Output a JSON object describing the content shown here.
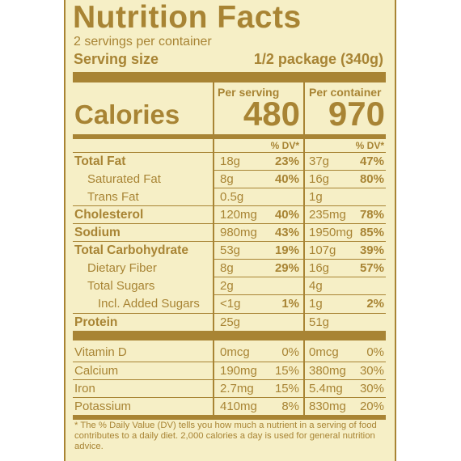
{
  "title": "Nutrition Facts",
  "servings_per_container": "2 servings per container",
  "serving_size": {
    "label": "Serving size",
    "value": "1/2 package (340g)"
  },
  "columns": {
    "per_serving": "Per serving",
    "per_container": "Per container"
  },
  "calories": {
    "label": "Calories",
    "per_serving": "480",
    "per_container": "970"
  },
  "dv_header": "% DV*",
  "nutrients": [
    {
      "name": "Total Fat",
      "ps_amount": "18g",
      "ps_dv": "23%",
      "pc_amount": "37g",
      "pc_dv": "47%"
    },
    {
      "name": "Saturated Fat",
      "ps_amount": "8g",
      "ps_dv": "40%",
      "pc_amount": "16g",
      "pc_dv": "80%"
    },
    {
      "name": "Trans Fat",
      "ps_amount": "0.5g",
      "ps_dv": "",
      "pc_amount": "1g",
      "pc_dv": ""
    },
    {
      "name": "Cholesterol",
      "ps_amount": "120mg",
      "ps_dv": "40%",
      "pc_amount": "235mg",
      "pc_dv": "78%"
    },
    {
      "name": "Sodium",
      "ps_amount": "980mg",
      "ps_dv": "43%",
      "pc_amount": "1950mg",
      "pc_dv": "85%"
    },
    {
      "name": "Total Carbohydrate",
      "ps_amount": "53g",
      "ps_dv": "19%",
      "pc_amount": "107g",
      "pc_dv": "39%"
    },
    {
      "name": "Dietary Fiber",
      "ps_amount": "8g",
      "ps_dv": "29%",
      "pc_amount": "16g",
      "pc_dv": "57%"
    },
    {
      "name": "Total Sugars",
      "ps_amount": "2g",
      "ps_dv": "",
      "pc_amount": "4g",
      "pc_dv": ""
    },
    {
      "name": "Incl. Added Sugars",
      "ps_amount": "<1g",
      "ps_dv": "1%",
      "pc_amount": "1g",
      "pc_dv": "2%"
    },
    {
      "name": "Protein",
      "ps_amount": "25g",
      "ps_dv": "",
      "pc_amount": "51g",
      "pc_dv": ""
    }
  ],
  "vitamins": [
    {
      "name": "Vitamin D",
      "ps_amount": "0mcg",
      "ps_dv": "0%",
      "pc_amount": "0mcg",
      "pc_dv": "0%"
    },
    {
      "name": "Calcium",
      "ps_amount": "190mg",
      "ps_dv": "15%",
      "pc_amount": "380mg",
      "pc_dv": "30%"
    },
    {
      "name": "Iron",
      "ps_amount": "2.7mg",
      "ps_dv": "15%",
      "pc_amount": "5.4mg",
      "pc_dv": "30%"
    },
    {
      "name": "Potassium",
      "ps_amount": "410mg",
      "ps_dv": "8%",
      "pc_amount": "830mg",
      "pc_dv": "20%"
    }
  ],
  "footnote": "* The % Daily Value (DV) tells you how much a nutrient in a serving of food contributes to a daily diet. 2,000 calories a day is used for general nutrition advice.",
  "colors": {
    "background": "#f6efc6",
    "ink": "#a88434"
  }
}
